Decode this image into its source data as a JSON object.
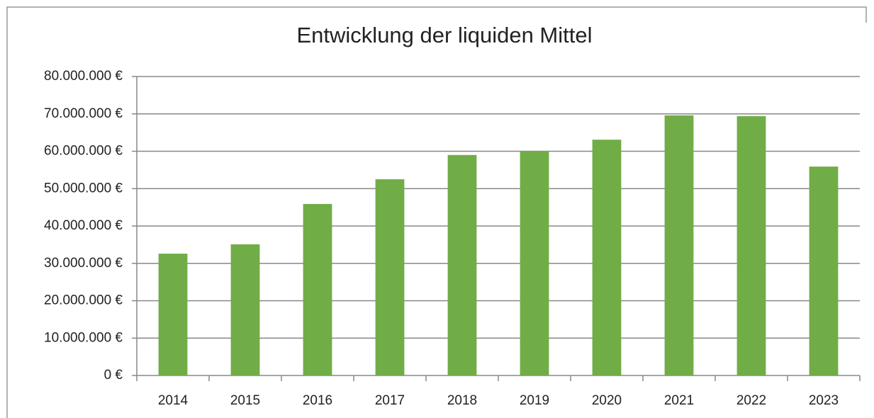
{
  "chart_data": {
    "type": "bar",
    "title": "Entwicklung der liquiden Mittel",
    "categories": [
      "2014",
      "2015",
      "2016",
      "2017",
      "2018",
      "2019",
      "2020",
      "2021",
      "2022",
      "2023"
    ],
    "values": [
      32600000,
      35100000,
      45900000,
      52500000,
      59000000,
      60100000,
      63100000,
      69600000,
      69400000,
      55900000
    ],
    "color": "#70ad47",
    "ylim": [
      0,
      80000000
    ],
    "yticks": [
      {
        "value": 0,
        "label": "0 €"
      },
      {
        "value": 10000000,
        "label": "10.000.000 €"
      },
      {
        "value": 20000000,
        "label": "20.000.000 €"
      },
      {
        "value": 30000000,
        "label": "30.000.000 €"
      },
      {
        "value": 40000000,
        "label": "40.000.000 €"
      },
      {
        "value": 50000000,
        "label": "50.000.000 €"
      },
      {
        "value": 60000000,
        "label": "60.000.000 €"
      },
      {
        "value": 70000000,
        "label": "70.000.000 €"
      },
      {
        "value": 80000000,
        "label": "80.000.000 €"
      }
    ],
    "grid": true
  }
}
